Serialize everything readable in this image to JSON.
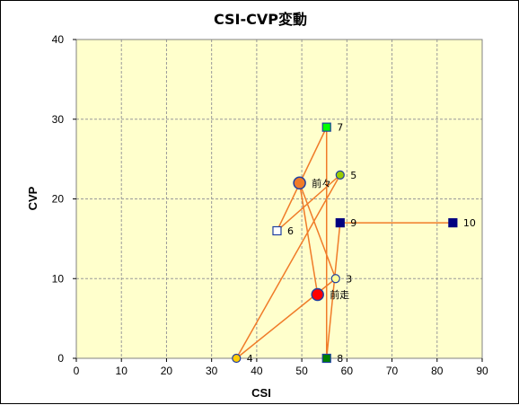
{
  "chart_data": {
    "type": "scatter",
    "title": "CSI-CVP変動",
    "xlabel": "CSI",
    "ylabel": "CVP",
    "xlim": [
      0,
      90
    ],
    "ylim": [
      0,
      40
    ],
    "xticks": [
      0,
      10,
      20,
      30,
      40,
      50,
      60,
      70,
      80,
      90
    ],
    "yticks": [
      0,
      10,
      20,
      30,
      40
    ],
    "grid": true,
    "colors": {
      "plot_background": "#FFFFCC",
      "grid": "#999999",
      "line": "#F07B28"
    },
    "path_order": [
      "10",
      "9",
      "8",
      "7",
      "6",
      "5",
      "4",
      "3",
      "前々",
      "前走"
    ],
    "points": [
      {
        "label": "前走",
        "x": 53.5,
        "y": 8,
        "marker": "circle-large",
        "fill": "#FF0000",
        "stroke": "#1F3FA0"
      },
      {
        "label": "前々",
        "x": 49.5,
        "y": 22,
        "marker": "circle-large",
        "fill": "#F07B28",
        "stroke": "#1F3FA0"
      },
      {
        "label": "3",
        "x": 57.5,
        "y": 10,
        "marker": "circle",
        "fill": "#FFFF99",
        "stroke": "#1F3FA0"
      },
      {
        "label": "4",
        "x": 35.5,
        "y": 0,
        "marker": "circle",
        "fill": "#FFCC00",
        "stroke": "#1F3FA0"
      },
      {
        "label": "5",
        "x": 58.5,
        "y": 23,
        "marker": "circle",
        "fill": "#99CC00",
        "stroke": "#1F3FA0"
      },
      {
        "label": "6",
        "x": 44.5,
        "y": 16,
        "marker": "square",
        "fill": "#FFFFFF",
        "stroke": "#1F3FA0"
      },
      {
        "label": "7",
        "x": 55.5,
        "y": 29,
        "marker": "square",
        "fill": "#00FF00",
        "stroke": "#1F3FA0"
      },
      {
        "label": "8",
        "x": 55.5,
        "y": 0,
        "marker": "square",
        "fill": "#008000",
        "stroke": "#1F3FA0"
      },
      {
        "label": "9",
        "x": 58.5,
        "y": 17,
        "marker": "square",
        "fill": "#000080",
        "stroke": "#000080"
      },
      {
        "label": "10",
        "x": 83.5,
        "y": 17,
        "marker": "square",
        "fill": "#000080",
        "stroke": "#000080"
      }
    ]
  }
}
